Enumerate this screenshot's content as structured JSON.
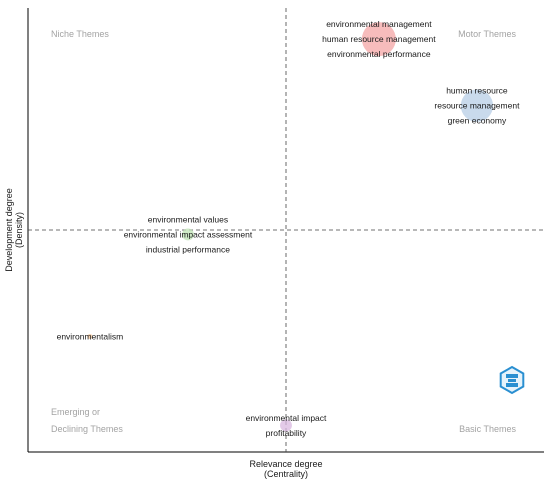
{
  "chart_data": {
    "type": "scatter",
    "title": "",
    "xlabel": [
      "Relevance degree",
      "(Centrality)"
    ],
    "ylabel": [
      "Development degree",
      "(Density)"
    ],
    "quadrants": {
      "top_left": [
        "Niche Themes"
      ],
      "top_right": [
        "Motor Themes"
      ],
      "bottom_left": [
        "Emerging or",
        "Declining Themes"
      ],
      "bottom_right": [
        "Basic Themes"
      ]
    },
    "grid": false,
    "legend": "none",
    "logo": "bibliometrix-logo",
    "points": [
      {
        "labels": [
          "environmental management",
          "human resource management",
          "environmental performance"
        ],
        "centrality": 0.68,
        "density": 0.93,
        "size": 1.0,
        "color": "#f4a6a6"
      },
      {
        "labels": [
          "human resource",
          "resource management",
          "green economy"
        ],
        "centrality": 0.87,
        "density": 0.78,
        "size": 0.95,
        "color": "#b7cde6"
      },
      {
        "labels": [
          "environmental values",
          "environmental impact assessment",
          "industrial performance"
        ],
        "centrality": 0.31,
        "density": 0.49,
        "size": 0.35,
        "color": "#bfe3b4"
      },
      {
        "labels": [
          "environmentalism"
        ],
        "centrality": 0.12,
        "density": 0.26,
        "size": 0.12,
        "color": "#f7c89b"
      },
      {
        "labels": [
          "environmental impact",
          "profitability"
        ],
        "centrality": 0.5,
        "density": 0.06,
        "size": 0.35,
        "color": "#d9b8e0"
      }
    ]
  }
}
